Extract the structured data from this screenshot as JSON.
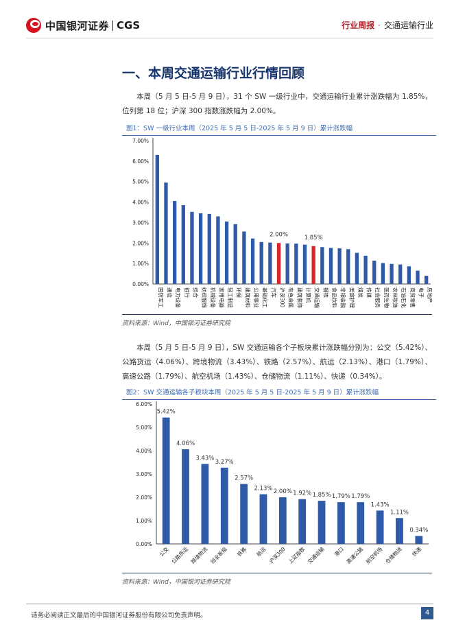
{
  "header": {
    "logo_name": "中国银河证券",
    "logo_abbr": "CGS",
    "report_kind": "行业周报",
    "dot": "·",
    "industry": "交通运输行业"
  },
  "section": {
    "title": "一、本周交通运输行业行情回顾"
  },
  "paragraph1": "本周（5 月 5 日-5 月 9 日），31 个 SW 一级行业中，交通运输行业累计涨跌幅为 1.85%，位列第 18 位；沪深 300 指数涨跌幅为 2.00%。",
  "figure1": {
    "title": "图1：SW 一级行业本周（2025 年 5 月 5 日-2025 年 5 月 9 日）累计涨跌幅",
    "source": "资料来源：Wind，中国银河证券研究院"
  },
  "paragraph2": "本周（5 月 5 日-5 月 9 日），SW 交通运输各个子板块累计涨跌幅分别为：公交（5.42%）、公路货运（4.06%）、跨境物流（3.43%）、铁路（2.57%）、航运（2.13%）、港口（1.79%）、高速公路（1.79%）、航空机场（1.43%）、仓储物流（1.11%）、快递（0.34%）。",
  "figure2": {
    "title": "图2：SW 交通运输各子板块本周（2025 年 5 月 5 日-2025 年 5 月 9 日）累计涨跌幅",
    "source": "资料来源：Wind，中国银河证券研究院"
  },
  "footer": {
    "disclaimer": "请务必阅读正文最后的中国银河证券股份有限公司免责声明。",
    "page": "4"
  },
  "colors": {
    "bar": "#2f5aa8",
    "highlight": "#d9262c",
    "title_blue": "#17356e"
  },
  "chart_data": [
    {
      "type": "bar",
      "title": "",
      "xlabel": "",
      "ylabel": "",
      "ylim": [
        0,
        7
      ],
      "yticks": [
        "0.00%",
        "1.00%",
        "2.00%",
        "3.00%",
        "4.00%",
        "5.00%",
        "6.00%",
        "7.00%"
      ],
      "categories": [
        "国防军工",
        "通信",
        "电力设备",
        "银行",
        "综合",
        "纺织服饰",
        "机械设备",
        "家用电器",
        "轻工制造",
        "环保",
        "建筑材料",
        "公用事业",
        "基础化工",
        "汽车",
        "沪深300",
        "有色金属",
        "建筑装饰",
        "计算机",
        "交通运输",
        "钢铁",
        "食品饮料",
        "非银金融",
        "美容护理",
        "煤炭",
        "传媒",
        "社会服务",
        "医药生物",
        "农林牧渔",
        "石油石化",
        "商贸零售",
        "电子",
        "房地产"
      ],
      "values": [
        6.3,
        4.95,
        4.05,
        3.85,
        3.52,
        3.45,
        3.42,
        3.3,
        3.05,
        2.92,
        2.56,
        2.22,
        2.05,
        2.02,
        2.0,
        1.98,
        1.97,
        1.92,
        1.85,
        1.8,
        1.76,
        1.74,
        1.7,
        1.52,
        1.38,
        1.14,
        1.02,
        0.98,
        0.95,
        0.86,
        0.65,
        0.4
      ],
      "highlight": [
        "沪深300",
        "交通运输"
      ],
      "data_labels": [
        {
          "category": "沪深300",
          "text": "2.00%"
        },
        {
          "category": "交通运输",
          "text": "1.85%"
        }
      ],
      "grid": false,
      "legend": "none"
    },
    {
      "type": "bar",
      "title": "",
      "xlabel": "",
      "ylabel": "",
      "ylim": [
        0,
        6
      ],
      "yticks": [
        "0.00%",
        "1.00%",
        "2.00%",
        "3.00%",
        "4.00%",
        "5.00%",
        "6.00%"
      ],
      "categories": [
        "公交",
        "公路货运",
        "跨境物流",
        "创业板指",
        "铁路",
        "航运",
        "沪深300",
        "上证指数",
        "交通运输",
        "港口",
        "高速公路",
        "航空机场",
        "仓储物流",
        "快递"
      ],
      "values": [
        5.42,
        4.06,
        3.43,
        3.27,
        2.57,
        2.13,
        2.0,
        1.92,
        1.85,
        1.79,
        1.79,
        1.43,
        1.11,
        0.34
      ],
      "data_labels_text": [
        "5.42%",
        "4.06%",
        "3.43%",
        "3.27%",
        "2.57%",
        "2.13%",
        "2.00%",
        "1.92%",
        "1.85%",
        "1.79%",
        "1.79%",
        "1.43%",
        "1.11%",
        "0.34%"
      ],
      "grid": false,
      "legend": "none"
    }
  ]
}
